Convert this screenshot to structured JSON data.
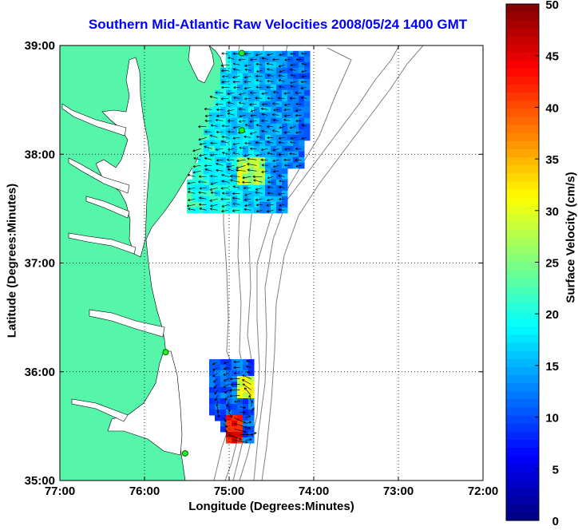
{
  "map": {
    "title": "Southern Mid-Atlantic Raw Velocities 2008/05/24 1400 GMT",
    "xlabel": "Longitude (Degrees:Minutes)",
    "ylabel": "Latitude (Degrees:Minutes)",
    "x_ticks": [
      "77:00",
      "76:00",
      "75:00",
      "74:00",
      "73:00",
      "72:00"
    ],
    "y_ticks": [
      "39:00",
      "38:00",
      "37:00",
      "36:00",
      "35:00"
    ],
    "land_color": "#55f5aa",
    "contour_color": "#808080",
    "grid": true,
    "grid_style": "dotted"
  },
  "colorbar": {
    "label": "Surface Velocity (cm/s)",
    "ticks": [
      "50",
      "45",
      "40",
      "35",
      "30",
      "25",
      "20",
      "15",
      "10",
      "5",
      "0"
    ],
    "range": [
      0,
      50
    ],
    "colormap": "jet"
  },
  "chart_data": {
    "type": "heatmap",
    "title": "Southern Mid-Atlantic Raw Velocities 2008/05/24 1400 GMT",
    "xlabel": "Longitude (Degrees:Minutes)",
    "ylabel": "Latitude (Degrees:Minutes)",
    "xlim_lon": [
      -77,
      -72
    ],
    "ylim_lat": [
      35,
      39
    ],
    "value_units": "cm/s",
    "value_range": [
      0,
      50
    ],
    "stations": [
      {
        "lon": -74.85,
        "lat": 38.93
      },
      {
        "lon": -74.85,
        "lat": 38.22
      },
      {
        "lon": -75.75,
        "lat": 36.18
      },
      {
        "lon": -75.52,
        "lat": 35.25
      }
    ],
    "regions": [
      {
        "name": "north",
        "lon_range": [
          -75.5,
          -74.05
        ],
        "lat_range": [
          37.5,
          38.95
        ],
        "typical_speed": 20,
        "direction": "westward"
      },
      {
        "name": "south",
        "lon_range": [
          -75.25,
          -74.55
        ],
        "lat_range": [
          35.35,
          36.1
        ],
        "typical_speed": 15,
        "max_speed": 48,
        "direction": "clockwise eddy"
      }
    ]
  }
}
